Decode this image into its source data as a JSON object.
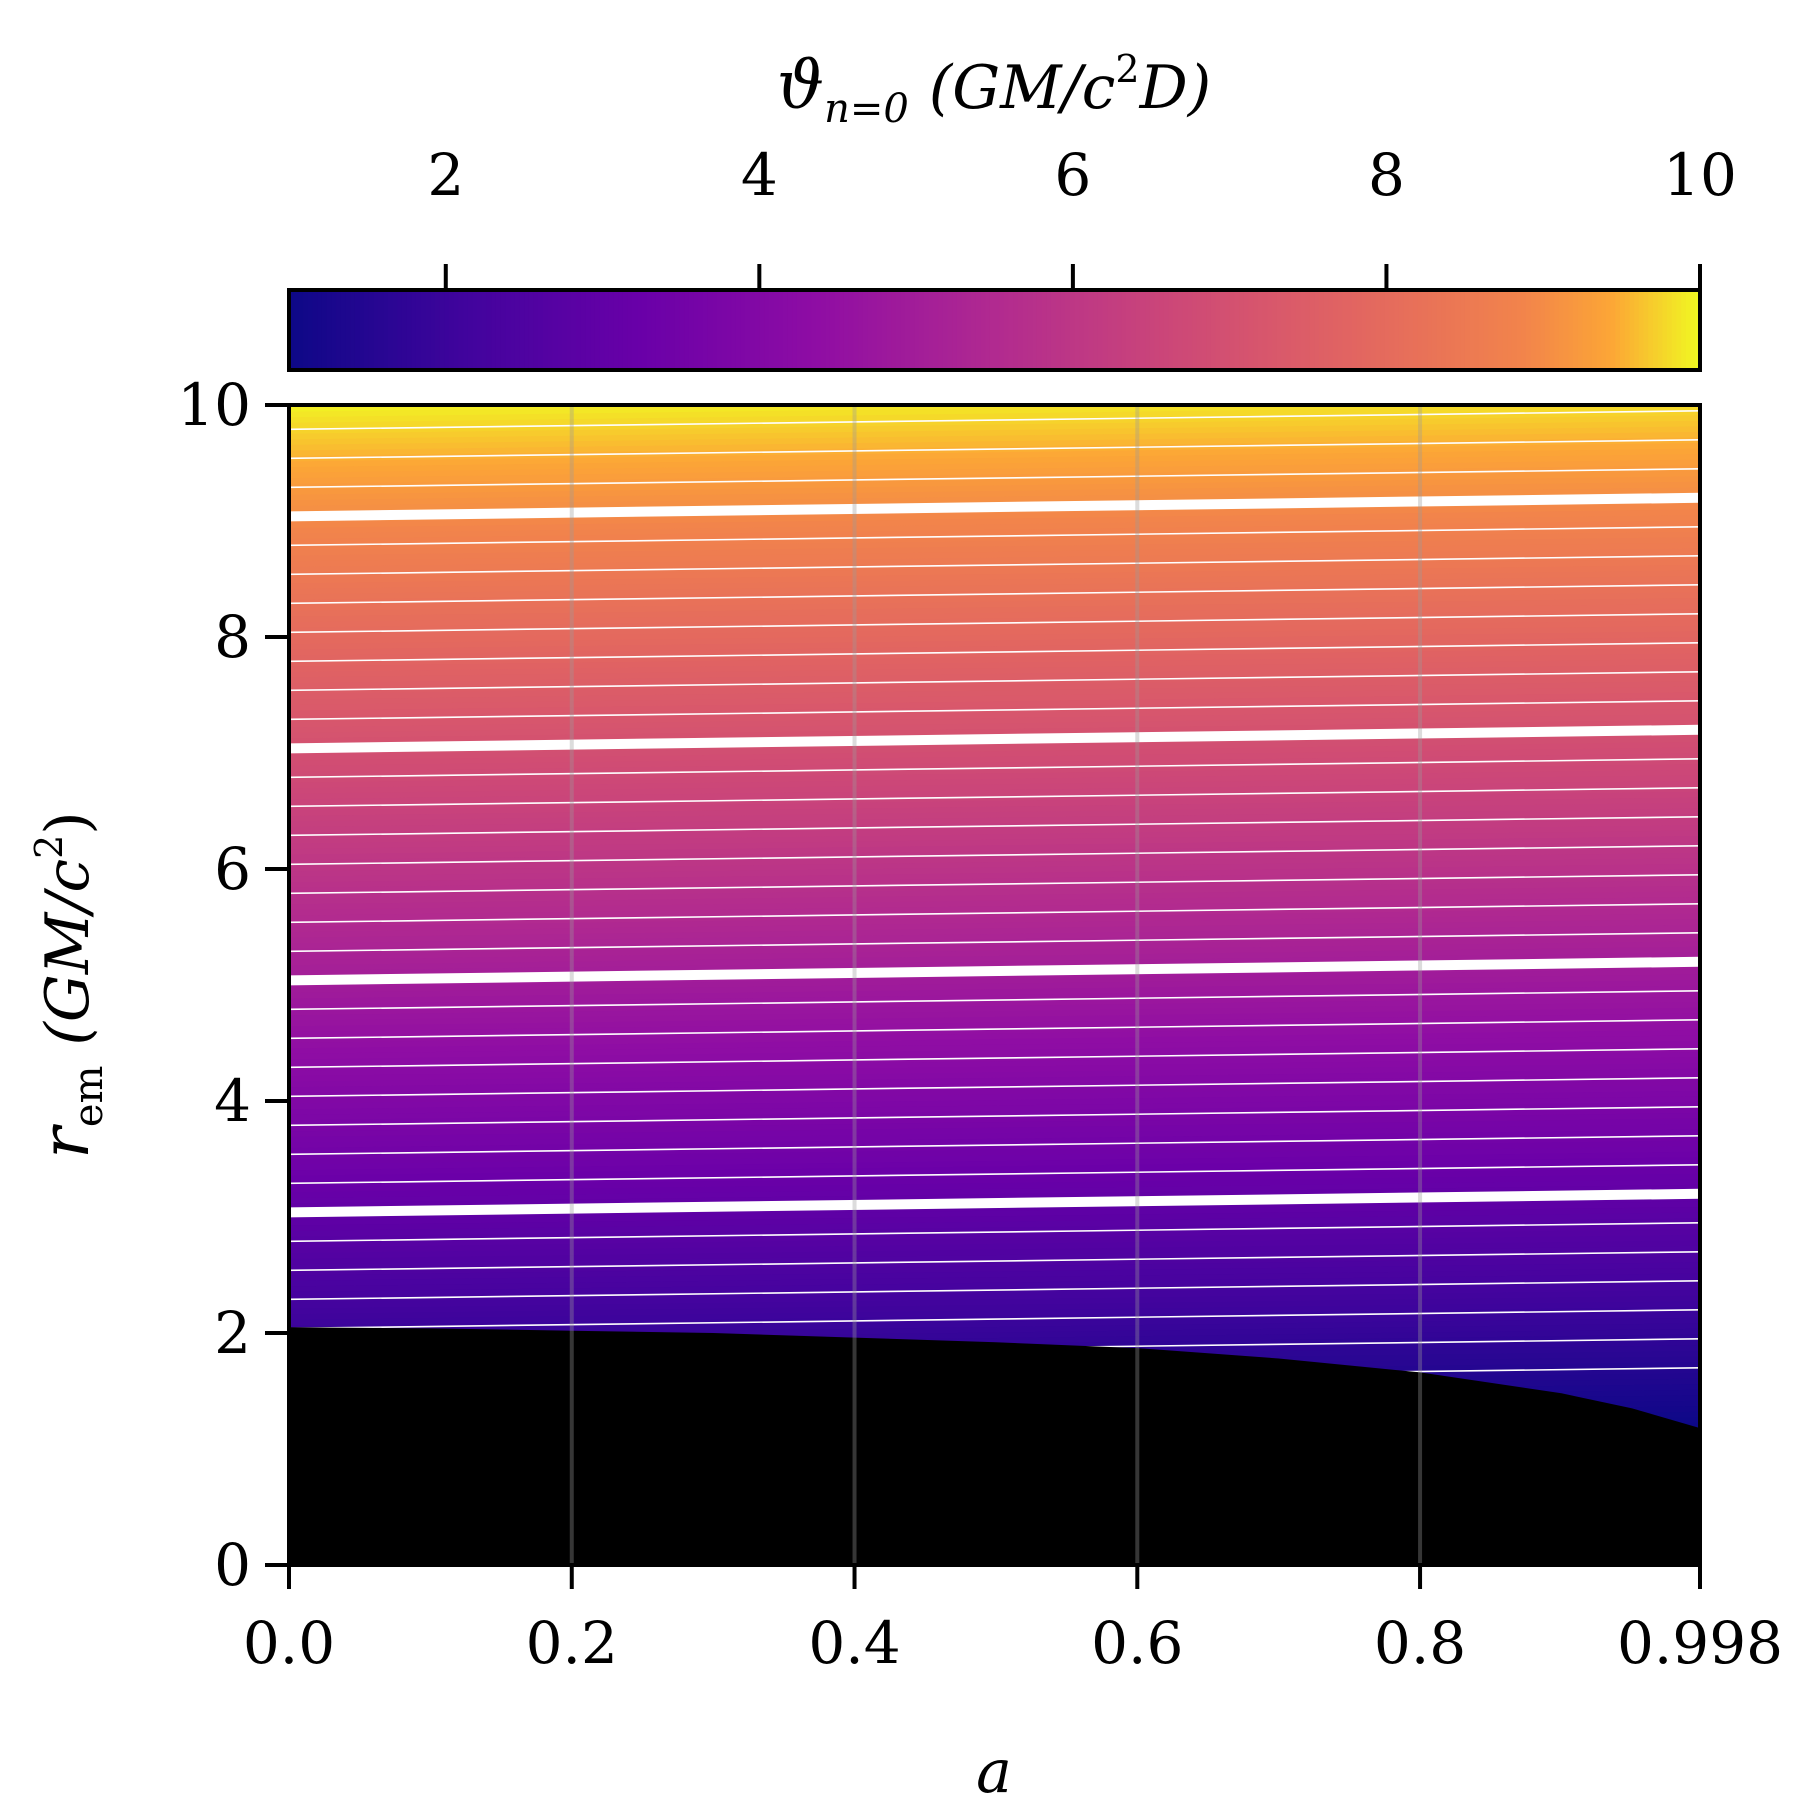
{
  "chart_data": {
    "type": "heatmap",
    "title": "",
    "xlabel": "a",
    "ylabel": {
      "symbol": "r",
      "subscript": "em",
      "units_open": "(GM/c",
      "units_sup": "2",
      "units_close": ")"
    },
    "colorbar": {
      "label": {
        "symbol": "ϑ",
        "subscript": "n=0",
        "units_open": "(GM/c",
        "units_sup": "2",
        "units_close": "D)"
      },
      "range": [
        1,
        10
      ],
      "ticks": [
        2,
        4,
        6,
        8,
        10
      ],
      "tick_labels": [
        "2",
        "4",
        "6",
        "8",
        "10"
      ],
      "colormap": "plasma",
      "position": "top"
    },
    "x_ticks": [
      0.0,
      0.2,
      0.4,
      0.6,
      0.8,
      0.998
    ],
    "x_tick_labels": [
      "0.0",
      "0.2",
      "0.4",
      "0.6",
      "0.8",
      "0.998"
    ],
    "y_ticks": [
      0,
      2,
      4,
      6,
      8,
      10
    ],
    "y_tick_labels": [
      "0",
      "2",
      "4",
      "6",
      "8",
      "10"
    ],
    "xlim": [
      0,
      0.998
    ],
    "ylim": [
      0,
      10
    ],
    "grid": "vertical",
    "horizon_boundary": {
      "x": [
        0.0,
        0.1,
        0.2,
        0.3,
        0.4,
        0.5,
        0.6,
        0.7,
        0.8,
        0.9,
        0.95,
        0.998
      ],
      "r": [
        2.05,
        2.04,
        2.02,
        2.0,
        1.96,
        1.92,
        1.87,
        1.78,
        1.66,
        1.48,
        1.35,
        1.18
      ]
    },
    "contours": {
      "thin_levels": [
        1.5,
        1.75,
        2.0,
        2.25,
        2.5,
        2.75,
        3.0,
        3.25,
        3.5,
        3.75,
        4.0,
        4.25,
        4.5,
        4.75,
        5.0,
        5.25,
        5.5,
        5.75,
        6.0,
        6.25,
        6.5,
        6.75,
        7.0,
        7.25,
        7.5,
        7.75,
        8.0,
        8.25,
        8.5,
        8.75,
        9.0,
        9.25,
        9.5,
        9.75
      ],
      "thick_levels": [
        3,
        5,
        7,
        9
      ]
    },
    "notes": "Value decreases slightly with spin a at fixed r_em; region below horizon is black."
  }
}
